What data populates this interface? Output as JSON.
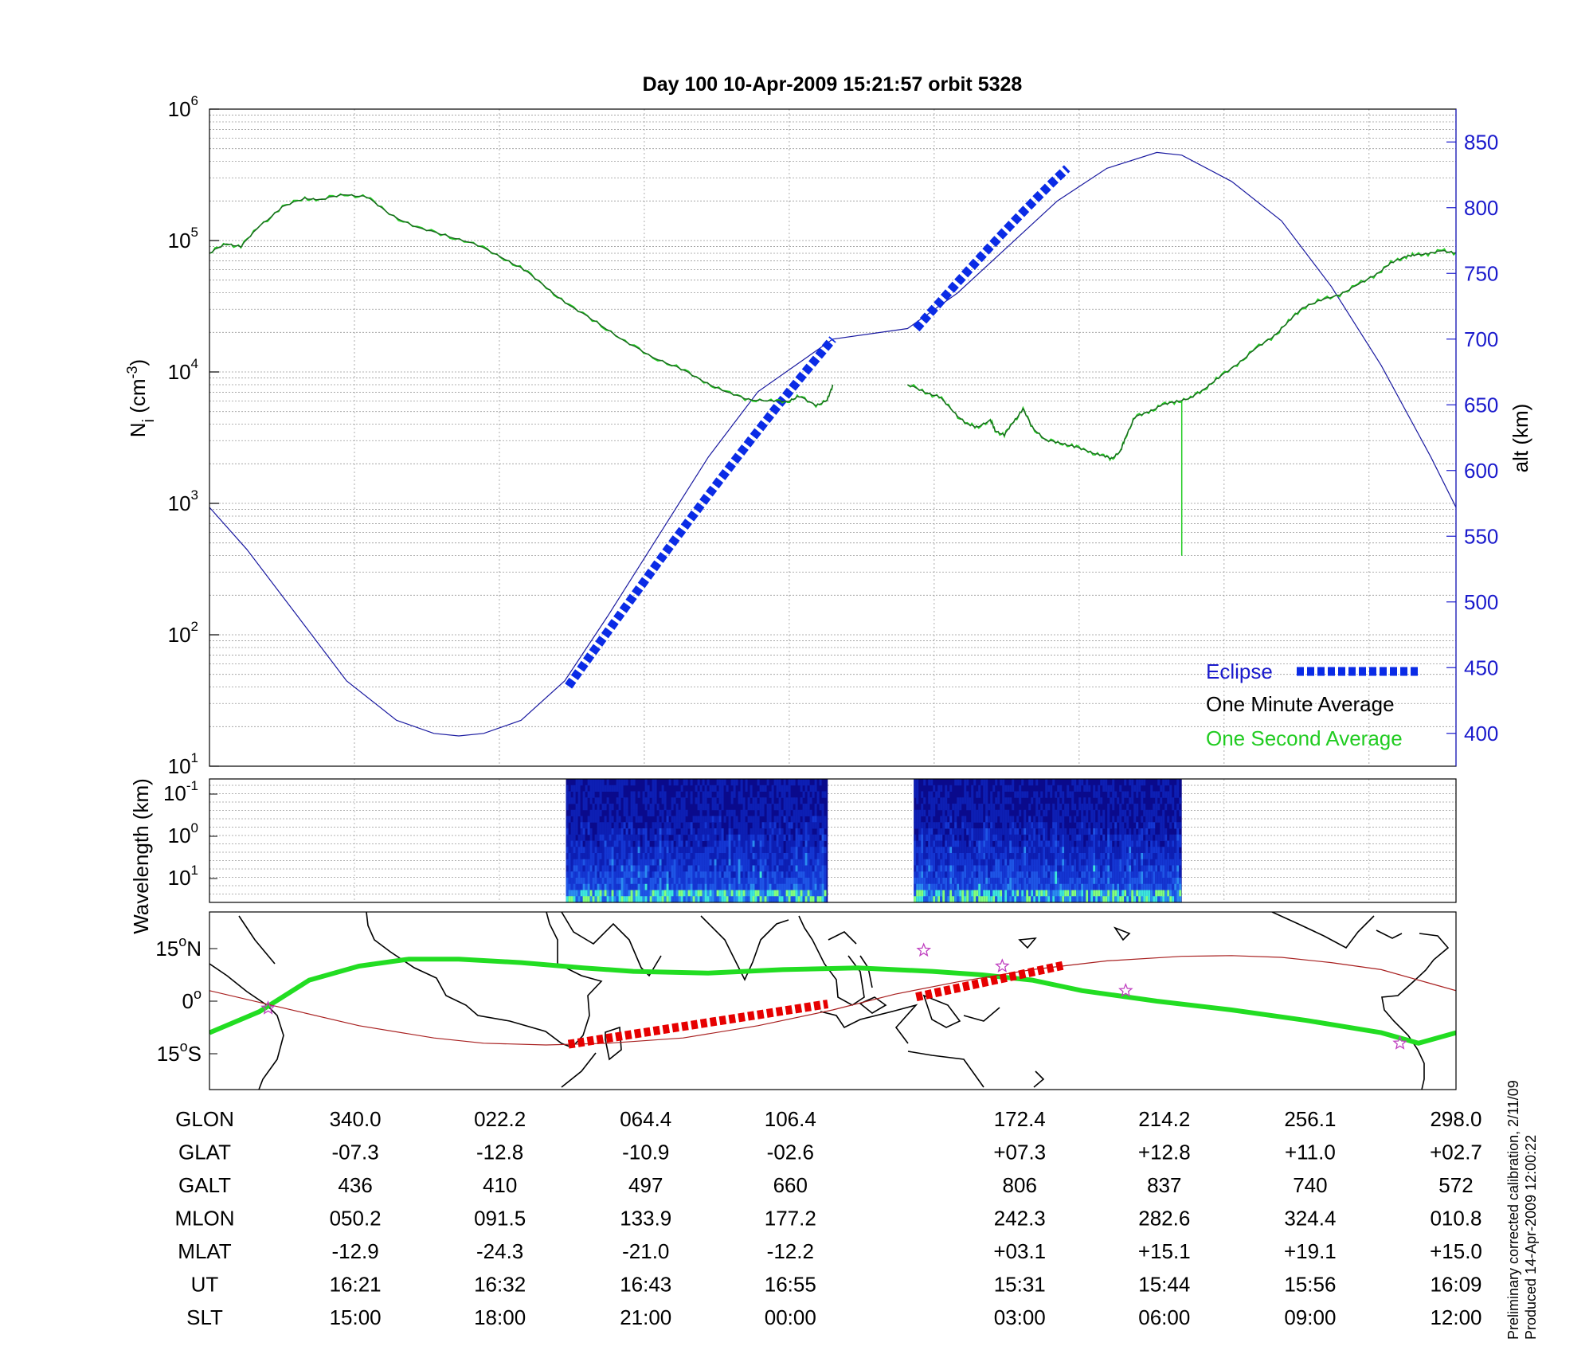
{
  "title": "Day 100  10-Apr-2009 15:21:57   orbit 5328",
  "colors": {
    "ion_density": "#1b5e20",
    "one_second": "#22cc22",
    "altitude": "#1a1aa0",
    "eclipse": "#0a2be6",
    "track_green": "#22dd22",
    "track_red": "#e60000",
    "track_line": "#a82020",
    "grid": "#999999",
    "right_axis": "#1a1acc"
  },
  "chart_data": [
    {
      "type": "line",
      "panel": "ion density and altitude",
      "y_log": true,
      "ylim": [
        10,
        1000000
      ],
      "y_ticks": [
        {
          "base": "10",
          "exp": "1"
        },
        {
          "base": "10",
          "exp": "2"
        },
        {
          "base": "10",
          "exp": "3"
        },
        {
          "base": "10",
          "exp": "4"
        },
        {
          "base": "10",
          "exp": "5"
        },
        {
          "base": "10",
          "exp": "6"
        }
      ],
      "ylabel": {
        "main": "N",
        "sub": "i",
        "unit_open": " (cm",
        "unit_exp": "-3",
        "unit_close": ")"
      },
      "y2label": "alt (km)",
      "y2lim": [
        375,
        875
      ],
      "y2_ticks": [
        "400",
        "450",
        "500",
        "550",
        "600",
        "650",
        "700",
        "750",
        "800",
        "850"
      ],
      "grid": true,
      "legend_position": "bottom-right",
      "legend": {
        "eclipse": "Eclipse",
        "minute": "One Minute Average",
        "second": "One Second Average"
      },
      "x_fraction_segments": [
        [
          0,
          0.5
        ],
        [
          0.56,
          0.78
        ],
        [
          0.78,
          1
        ]
      ],
      "ion_density": {
        "segment1": [
          [
            0,
            80000
          ],
          [
            0.015,
            95000
          ],
          [
            0.028,
            90000
          ],
          [
            0.045,
            130000
          ],
          [
            0.065,
            180000
          ],
          [
            0.085,
            210000
          ],
          [
            0.1,
            205000
          ],
          [
            0.12,
            225000
          ],
          [
            0.14,
            215000
          ],
          [
            0.16,
            160000
          ],
          [
            0.185,
            125000
          ],
          [
            0.21,
            110000
          ],
          [
            0.235,
            95000
          ],
          [
            0.26,
            75000
          ],
          [
            0.28,
            60000
          ],
          [
            0.3,
            44000
          ],
          [
            0.32,
            32000
          ],
          [
            0.345,
            24000
          ],
          [
            0.37,
            17000
          ],
          [
            0.395,
            13000
          ],
          [
            0.42,
            10500
          ],
          [
            0.44,
            8500
          ],
          [
            0.46,
            7000
          ],
          [
            0.48,
            6200
          ],
          [
            0.5,
            6000
          ],
          [
            0.515,
            6000
          ],
          [
            0.525,
            6500
          ],
          [
            0.54,
            5600
          ],
          [
            0.55,
            6000
          ],
          [
            0.555,
            8000
          ]
        ],
        "segment2": [
          [
            0.566,
            8000
          ],
          [
            0.585,
            7000
          ],
          [
            0.6,
            6500
          ],
          [
            0.615,
            5000
          ],
          [
            0.63,
            4000
          ],
          [
            0.64,
            3800
          ],
          [
            0.655,
            4300
          ],
          [
            0.66,
            3600
          ],
          [
            0.67,
            3300
          ],
          [
            0.68,
            4200
          ],
          [
            0.69,
            5200
          ],
          [
            0.7,
            3800
          ],
          [
            0.715,
            3000
          ],
          [
            0.73,
            2900
          ],
          [
            0.745,
            2700
          ],
          [
            0.76,
            2500
          ],
          [
            0.775,
            2300
          ],
          [
            0.785,
            2200
          ],
          [
            0.795,
            2500
          ],
          [
            0.8,
            3200
          ],
          [
            0.81,
            4500
          ],
          [
            0.825,
            5000
          ],
          [
            0.84,
            5600
          ],
          [
            0.855,
            6000
          ],
          [
            0.87,
            6300
          ],
          [
            0.885,
            7500
          ],
          [
            0.9,
            9000
          ],
          [
            0.92,
            11500
          ],
          [
            0.94,
            15000
          ],
          [
            0.96,
            19000
          ],
          [
            0.975,
            24000
          ],
          [
            0.99,
            31000
          ],
          [
            1.01,
            35000
          ],
          [
            1.03,
            39000
          ],
          [
            1.05,
            46000
          ],
          [
            1.07,
            56000
          ],
          [
            1.085,
            67000
          ],
          [
            1.1,
            76000
          ],
          [
            1.11,
            77000
          ],
          [
            1.125,
            80000
          ],
          [
            1.14,
            83000
          ],
          [
            1.155,
            81000
          ]
        ],
        "segment2_x_scale": "0.56 + t*0.44/1.155"
      },
      "one_second_spike": {
        "x": 0.78,
        "y_low": 400,
        "y_high": 6000
      },
      "altitude": {
        "points": [
          [
            0,
            572
          ],
          [
            0.03,
            540
          ],
          [
            0.07,
            490
          ],
          [
            0.11,
            440
          ],
          [
            0.15,
            410
          ],
          [
            0.18,
            400
          ],
          [
            0.2,
            398
          ],
          [
            0.22,
            400
          ],
          [
            0.25,
            410
          ],
          [
            0.285,
            440
          ],
          [
            0.32,
            490
          ],
          [
            0.36,
            550
          ],
          [
            0.4,
            610
          ],
          [
            0.44,
            660
          ],
          [
            0.5,
            700
          ],
          [
            0.56,
            708
          ],
          [
            0.6,
            735
          ],
          [
            0.64,
            770
          ],
          [
            0.68,
            805
          ],
          [
            0.72,
            830
          ],
          [
            0.76,
            842
          ],
          [
            0.78,
            840
          ],
          [
            0.82,
            820
          ],
          [
            0.86,
            790
          ],
          [
            0.9,
            740
          ],
          [
            0.94,
            680
          ],
          [
            0.98,
            610
          ],
          [
            1,
            572
          ]
        ]
      },
      "eclipse": {
        "segment1": {
          "x_start": 0.288,
          "x_end": 0.5,
          "alt_start": 436,
          "alt_end": 700
        },
        "segment2": {
          "x_start": 0.567,
          "x_end": 0.688,
          "alt_start": 708,
          "alt_end": 830
        }
      }
    },
    {
      "type": "heatmap",
      "panel": "wavelength spectrogram",
      "ylabel": "Wavelength (km)",
      "y_ticks": [
        {
          "base": "10",
          "exp": "-1"
        },
        {
          "base": "10",
          "exp": "0"
        },
        {
          "base": "10",
          "exp": "1"
        }
      ],
      "y_log": true,
      "grid": true,
      "blocks_x_fraction": [
        [
          0.286,
          0.496
        ],
        [
          0.565,
          0.78
        ]
      ],
      "palette": [
        "#0a0a8c",
        "#0d1fb4",
        "#1436d2",
        "#1e55e6",
        "#2a8cf0",
        "#3ce6dc",
        "#82ff7c"
      ]
    },
    {
      "type": "map",
      "panel": "orbit ground track",
      "y_ticks": [
        {
          "value": "15",
          "hemisphere": "N"
        },
        {
          "value": "0",
          "hemisphere": ""
        },
        {
          "value": "15",
          "hemisphere": "S"
        }
      ],
      "ylim": [
        -25,
        25
      ],
      "magnetic_equator": [
        [
          0,
          -9
        ],
        [
          0.04,
          -3
        ],
        [
          0.08,
          6
        ],
        [
          0.12,
          10
        ],
        [
          0.16,
          12
        ],
        [
          0.2,
          12
        ],
        [
          0.25,
          11
        ],
        [
          0.3,
          9.5
        ],
        [
          0.34,
          8.5
        ],
        [
          0.4,
          8
        ],
        [
          0.46,
          9
        ],
        [
          0.52,
          9.5
        ],
        [
          0.58,
          8.5
        ],
        [
          0.62,
          7.5
        ],
        [
          0.66,
          6
        ],
        [
          0.7,
          3
        ],
        [
          0.76,
          0
        ],
        [
          0.82,
          -2.5
        ],
        [
          0.88,
          -5.5
        ],
        [
          0.94,
          -9
        ],
        [
          0.97,
          -12
        ],
        [
          1,
          -9
        ]
      ],
      "orbit_track": [
        [
          0,
          3
        ],
        [
          0.06,
          -2
        ],
        [
          0.12,
          -7
        ],
        [
          0.18,
          -10.5
        ],
        [
          0.22,
          -12
        ],
        [
          0.27,
          -12.5
        ],
        [
          0.32,
          -12
        ],
        [
          0.38,
          -10.5
        ],
        [
          0.44,
          -7
        ],
        [
          0.5,
          -2.5
        ],
        [
          0.55,
          2
        ],
        [
          0.6,
          5.5
        ],
        [
          0.66,
          9
        ],
        [
          0.72,
          11.5
        ],
        [
          0.78,
          12.8
        ],
        [
          0.82,
          13
        ],
        [
          0.86,
          12.5
        ],
        [
          0.9,
          11
        ],
        [
          0.94,
          9
        ],
        [
          0.98,
          5
        ],
        [
          1,
          3
        ]
      ],
      "eclipse_track": [
        [
          0.288,
          -12.3
        ],
        [
          0.496,
          -0.8
        ],
        [
          0.567,
          1.2
        ],
        [
          0.686,
          10.3
        ]
      ],
      "star_markers": [
        [
          0.047,
          -2
        ],
        [
          0.573,
          14.5
        ],
        [
          0.636,
          10
        ],
        [
          0.735,
          3
        ],
        [
          0.955,
          -12
        ]
      ]
    }
  ],
  "table": {
    "rows": [
      {
        "label": "GLON",
        "values": [
          "340.0",
          "022.2",
          "064.4",
          "106.4",
          "172.4",
          "214.2",
          "256.1",
          "298.0"
        ]
      },
      {
        "label": "GLAT",
        "values": [
          "-07.3",
          "-12.8",
          "-10.9",
          "-02.6",
          "+07.3",
          "+12.8",
          "+11.0",
          "+02.7"
        ]
      },
      {
        "label": "GALT",
        "values": [
          "436",
          "410",
          "497",
          "660",
          "806",
          "837",
          "740",
          "572"
        ]
      },
      {
        "label": "MLON",
        "values": [
          "050.2",
          "091.5",
          "133.9",
          "177.2",
          "242.3",
          "282.6",
          "324.4",
          "010.8"
        ]
      },
      {
        "label": "MLAT",
        "values": [
          "-12.9",
          "-24.3",
          "-21.0",
          "-12.2",
          "+03.1",
          "+15.1",
          "+19.1",
          "+15.0"
        ]
      },
      {
        "label": "UT",
        "values": [
          "16:21",
          "16:32",
          "16:43",
          "16:55",
          "15:31",
          "15:44",
          "15:56",
          "16:09"
        ]
      },
      {
        "label": "SLT",
        "values": [
          "15:00",
          "18:00",
          "21:00",
          "00:00",
          "03:00",
          "06:00",
          "09:00",
          "12:00"
        ]
      }
    ],
    "column_x_fraction": [
      0.117,
      0.233,
      0.35,
      0.466,
      0.65,
      0.766,
      0.883,
      1.0
    ]
  },
  "side_note": {
    "line1": "Preliminary corrected calibration, 2/11/09",
    "line2": "Produced 14-Apr-2009 12:00:22"
  }
}
